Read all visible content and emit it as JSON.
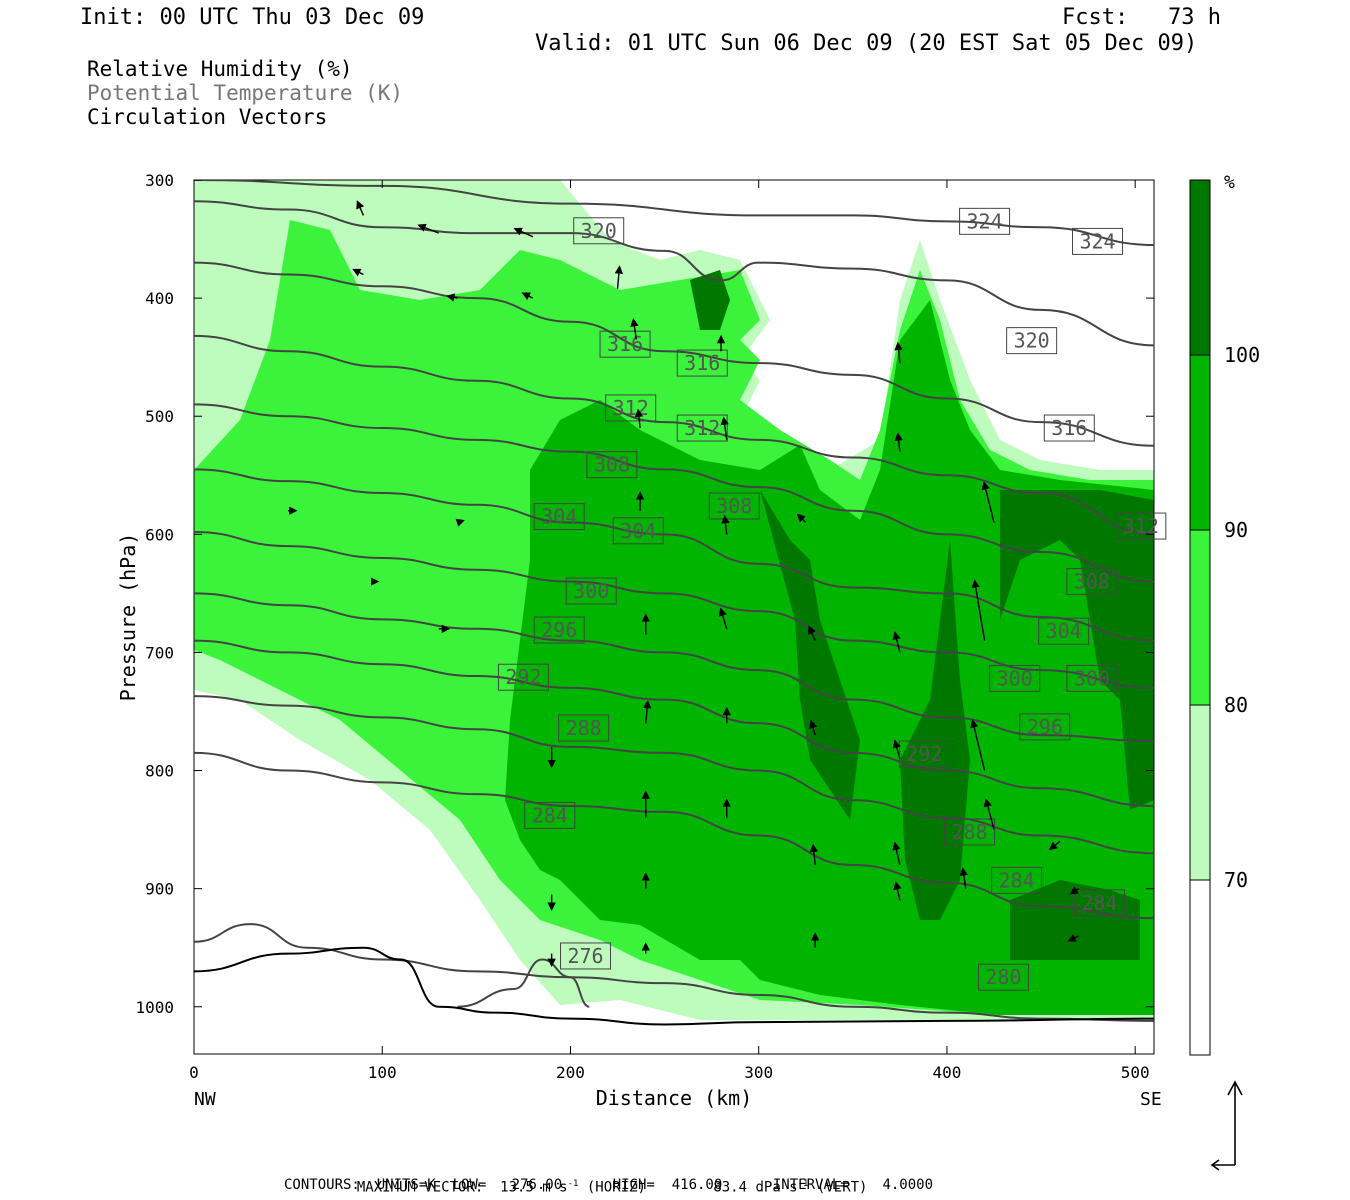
{
  "header": {
    "init": "Init: 00 UTC Thu 03 Dec 09",
    "fcst": "Fcst:   73 h",
    "valid": "Valid: 01 UTC Sun 06 Dec 09 (20 EST Sat 05 Dec 09)"
  },
  "legend_lines": {
    "rh": "Relative Humidity (%)",
    "theta": "Potential Temperature (K)",
    "vectors": "Circulation Vectors"
  },
  "colors": {
    "rh_70_80": "#bdfcbd",
    "rh_80_90": "#3cf33c",
    "rh_90_100": "#00b400",
    "rh_100": "#007800",
    "contour": "#444444",
    "theta_text": "#777777"
  },
  "chart_data": {
    "type": "cross-section",
    "xlabel": "Distance (km)",
    "ylabel": "Pressure (hPa)",
    "x_ticks": [
      0,
      100,
      200,
      300,
      400,
      500
    ],
    "y_ticks": [
      300,
      400,
      500,
      600,
      700,
      800,
      900,
      1000
    ],
    "xlim": [
      0,
      510
    ],
    "ylim": [
      1040,
      300
    ],
    "x_end_labels": {
      "left": "NW",
      "right": "SE"
    },
    "colorbar": {
      "unit": "%",
      "ticks": [
        100,
        90,
        80,
        70
      ],
      "bins": [
        {
          "range": [
            100,
            110
          ],
          "color": "#007800"
        },
        {
          "range": [
            90,
            100
          ],
          "color": "#00b400"
        },
        {
          "range": [
            80,
            90
          ],
          "color": "#3cf33c"
        },
        {
          "range": [
            70,
            80
          ],
          "color": "#bdfcbd"
        },
        {
          "range": [
            0,
            70
          ],
          "color": "#ffffff"
        }
      ]
    },
    "isentropes": [
      {
        "theta": 324,
        "points": [
          [
            0,
            300
          ],
          [
            100,
            305
          ],
          [
            200,
            320
          ],
          [
            300,
            330
          ],
          [
            350,
            330
          ],
          [
            400,
            335
          ],
          [
            450,
            340
          ],
          [
            510,
            355
          ]
        ],
        "labels": [
          [
            420,
            335
          ],
          [
            480,
            352
          ]
        ]
      },
      {
        "theta": 320,
        "points": [
          [
            0,
            318
          ],
          [
            50,
            325
          ],
          [
            100,
            340
          ],
          [
            150,
            345
          ],
          [
            200,
            345
          ],
          [
            250,
            360
          ],
          [
            280,
            385
          ],
          [
            300,
            370
          ],
          [
            350,
            375
          ],
          [
            400,
            385
          ],
          [
            450,
            410
          ],
          [
            510,
            440
          ]
        ],
        "labels": [
          [
            215,
            343
          ],
          [
            445,
            436
          ]
        ]
      },
      {
        "theta": 316,
        "points": [
          [
            0,
            370
          ],
          [
            50,
            380
          ],
          [
            100,
            390
          ],
          [
            150,
            400
          ],
          [
            200,
            420
          ],
          [
            250,
            445
          ],
          [
            300,
            455
          ],
          [
            350,
            465
          ],
          [
            400,
            485
          ],
          [
            450,
            505
          ],
          [
            510,
            525
          ]
        ],
        "labels": [
          [
            229,
            439
          ],
          [
            270,
            455
          ],
          [
            465,
            510
          ]
        ]
      },
      {
        "theta": 312,
        "points": [
          [
            0,
            432
          ],
          [
            50,
            445
          ],
          [
            100,
            458
          ],
          [
            150,
            470
          ],
          [
            200,
            485
          ],
          [
            250,
            505
          ],
          [
            300,
            520
          ],
          [
            350,
            535
          ],
          [
            400,
            550
          ],
          [
            450,
            565
          ],
          [
            510,
            600
          ]
        ],
        "labels": [
          [
            232,
            493
          ],
          [
            270,
            510
          ],
          [
            503,
            593
          ]
        ]
      },
      {
        "theta": 308,
        "points": [
          [
            0,
            490
          ],
          [
            50,
            500
          ],
          [
            100,
            510
          ],
          [
            150,
            520
          ],
          [
            200,
            530
          ],
          [
            250,
            545
          ],
          [
            300,
            560
          ],
          [
            350,
            580
          ],
          [
            400,
            600
          ],
          [
            450,
            615
          ],
          [
            510,
            640
          ]
        ],
        "labels": [
          [
            222,
            541
          ],
          [
            287,
            576
          ],
          [
            477,
            640
          ]
        ]
      },
      {
        "theta": 304,
        "points": [
          [
            0,
            545
          ],
          [
            50,
            555
          ],
          [
            100,
            565
          ],
          [
            150,
            575
          ],
          [
            200,
            590
          ],
          [
            250,
            600
          ],
          [
            300,
            625
          ],
          [
            350,
            645
          ],
          [
            400,
            650
          ],
          [
            450,
            670
          ],
          [
            510,
            690
          ]
        ],
        "labels": [
          [
            194,
            585
          ],
          [
            236,
            597
          ],
          [
            462,
            682
          ]
        ]
      },
      {
        "theta": 300,
        "points": [
          [
            0,
            598
          ],
          [
            50,
            610
          ],
          [
            100,
            620
          ],
          [
            150,
            630
          ],
          [
            200,
            640
          ],
          [
            250,
            650
          ],
          [
            300,
            665
          ],
          [
            350,
            690
          ],
          [
            400,
            700
          ],
          [
            450,
            715
          ],
          [
            510,
            730
          ]
        ],
        "labels": [
          [
            211,
            648
          ],
          [
            436,
            722
          ],
          [
            477,
            722
          ]
        ]
      },
      {
        "theta": 296,
        "points": [
          [
            0,
            650
          ],
          [
            50,
            660
          ],
          [
            100,
            672
          ],
          [
            150,
            680
          ],
          [
            200,
            690
          ],
          [
            250,
            700
          ],
          [
            300,
            715
          ],
          [
            350,
            740
          ],
          [
            400,
            755
          ],
          [
            450,
            770
          ],
          [
            510,
            775
          ]
        ],
        "labels": [
          [
            194,
            681
          ],
          [
            452,
            763
          ]
        ]
      },
      {
        "theta": 292,
        "points": [
          [
            0,
            690
          ],
          [
            50,
            700
          ],
          [
            100,
            710
          ],
          [
            150,
            720
          ],
          [
            200,
            730
          ],
          [
            250,
            740
          ],
          [
            300,
            760
          ],
          [
            350,
            785
          ],
          [
            400,
            800
          ],
          [
            450,
            815
          ],
          [
            510,
            830
          ]
        ],
        "labels": [
          [
            175,
            721
          ],
          [
            388,
            786
          ]
        ]
      },
      {
        "theta": 288,
        "points": [
          [
            0,
            737
          ],
          [
            50,
            745
          ],
          [
            100,
            755
          ],
          [
            150,
            765
          ],
          [
            200,
            780
          ],
          [
            250,
            785
          ],
          [
            300,
            800
          ],
          [
            350,
            825
          ],
          [
            400,
            840
          ],
          [
            450,
            855
          ],
          [
            510,
            870
          ]
        ],
        "labels": [
          [
            207,
            764
          ],
          [
            412,
            852
          ]
        ]
      },
      {
        "theta": 284,
        "points": [
          [
            0,
            785
          ],
          [
            50,
            800
          ],
          [
            100,
            810
          ],
          [
            150,
            820
          ],
          [
            200,
            830
          ],
          [
            250,
            835
          ],
          [
            300,
            855
          ],
          [
            350,
            880
          ],
          [
            400,
            895
          ],
          [
            450,
            915
          ],
          [
            510,
            925
          ]
        ],
        "labels": [
          [
            189,
            838
          ],
          [
            437,
            893
          ],
          [
            481,
            912
          ]
        ]
      },
      {
        "theta": 280,
        "points": [
          [
            0,
            945
          ],
          [
            30,
            930
          ],
          [
            60,
            950
          ],
          [
            100,
            960
          ],
          [
            150,
            970
          ],
          [
            200,
            975
          ],
          [
            250,
            980
          ],
          [
            300,
            990
          ],
          [
            350,
            1000
          ],
          [
            400,
            1005
          ],
          [
            450,
            1010
          ],
          [
            510,
            1012
          ]
        ],
        "labels": [
          [
            430,
            975
          ]
        ]
      },
      {
        "theta": 276,
        "points": [
          [
            140,
            1000
          ],
          [
            170,
            985
          ],
          [
            185,
            960
          ],
          [
            200,
            975
          ],
          [
            210,
            1000
          ]
        ],
        "labels": [
          [
            208,
            957
          ]
        ]
      }
    ],
    "surface_pressure": [
      [
        0,
        970
      ],
      [
        50,
        955
      ],
      [
        90,
        950
      ],
      [
        110,
        960
      ],
      [
        130,
        1000
      ],
      [
        160,
        1005
      ],
      [
        200,
        1010
      ],
      [
        250,
        1015
      ],
      [
        300,
        1013
      ],
      [
        400,
        1012
      ],
      [
        510,
        1010
      ]
    ],
    "max_vector": {
      "horizontal": "13.5 m s⁻¹ (HORIZ)",
      "vertical": "83.4 dPa s⁻¹ (VERT)"
    },
    "contours": {
      "units": "K",
      "low": "276.00",
      "high": "416.00",
      "interval": "4.0000"
    }
  },
  "footer": {
    "max_vector_label": "MAXIMUM VECTOR:",
    "horiz": "13.5 m s",
    "horiz_exp": "-1",
    "horiz_tail": "(HORIZ)",
    "vert": "83.4 dPa s",
    "vert_exp": "-1",
    "vert_tail": "(VERT)",
    "contours_line": "CONTOURS:  UNITS=K  LOW=   276.00      HIGH=  416.00      INTERVAL=    4.0000"
  }
}
